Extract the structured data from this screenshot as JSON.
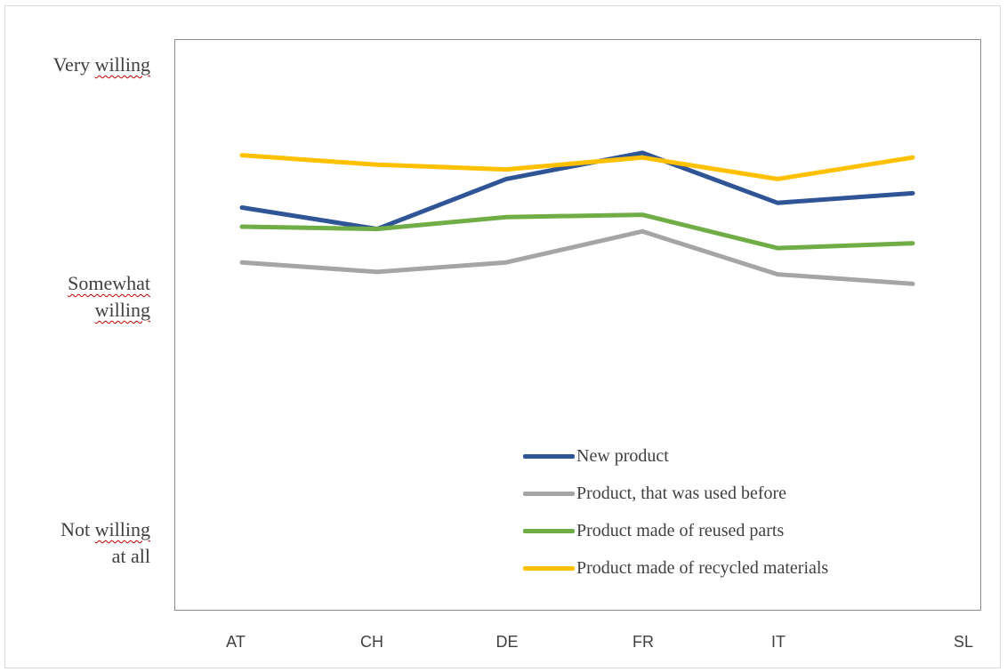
{
  "chart_data": {
    "type": "line",
    "categories": [
      "AT",
      "CH",
      "DE",
      "FR",
      "IT",
      "SL"
    ],
    "y_tick_labels": {
      "very_willing_first": "Very ",
      "very_willing_second": "willing",
      "somewhat_line1": "Somewhat",
      "somewhat_line2": "willing",
      "not_line1_first": "Not ",
      "not_line1_second": "willing",
      "not_line2": "at all"
    },
    "y_scale": {
      "not_willing_at_all": 1,
      "somewhat_willing": 2,
      "very_willing": 3
    },
    "ylim": [
      0.8,
      3.05
    ],
    "grid": false,
    "legend_position": "bottom-right",
    "series": [
      {
        "name": "New product",
        "color": "#2f5597",
        "values": [
          2.36,
          2.27,
          2.48,
          2.59,
          2.38,
          2.42
        ]
      },
      {
        "name": "Product, that was used before",
        "color": "#a5a5a5",
        "values": [
          2.13,
          2.09,
          2.13,
          2.26,
          2.08,
          2.04
        ]
      },
      {
        "name": "Product made of reused parts",
        "color": "#70ad47",
        "values": [
          2.28,
          2.27,
          2.32,
          2.33,
          2.19,
          2.21
        ]
      },
      {
        "name": "Product made of recycled materials",
        "color": "#ffc000",
        "values": [
          2.58,
          2.54,
          2.52,
          2.57,
          2.48,
          2.57
        ]
      }
    ]
  }
}
